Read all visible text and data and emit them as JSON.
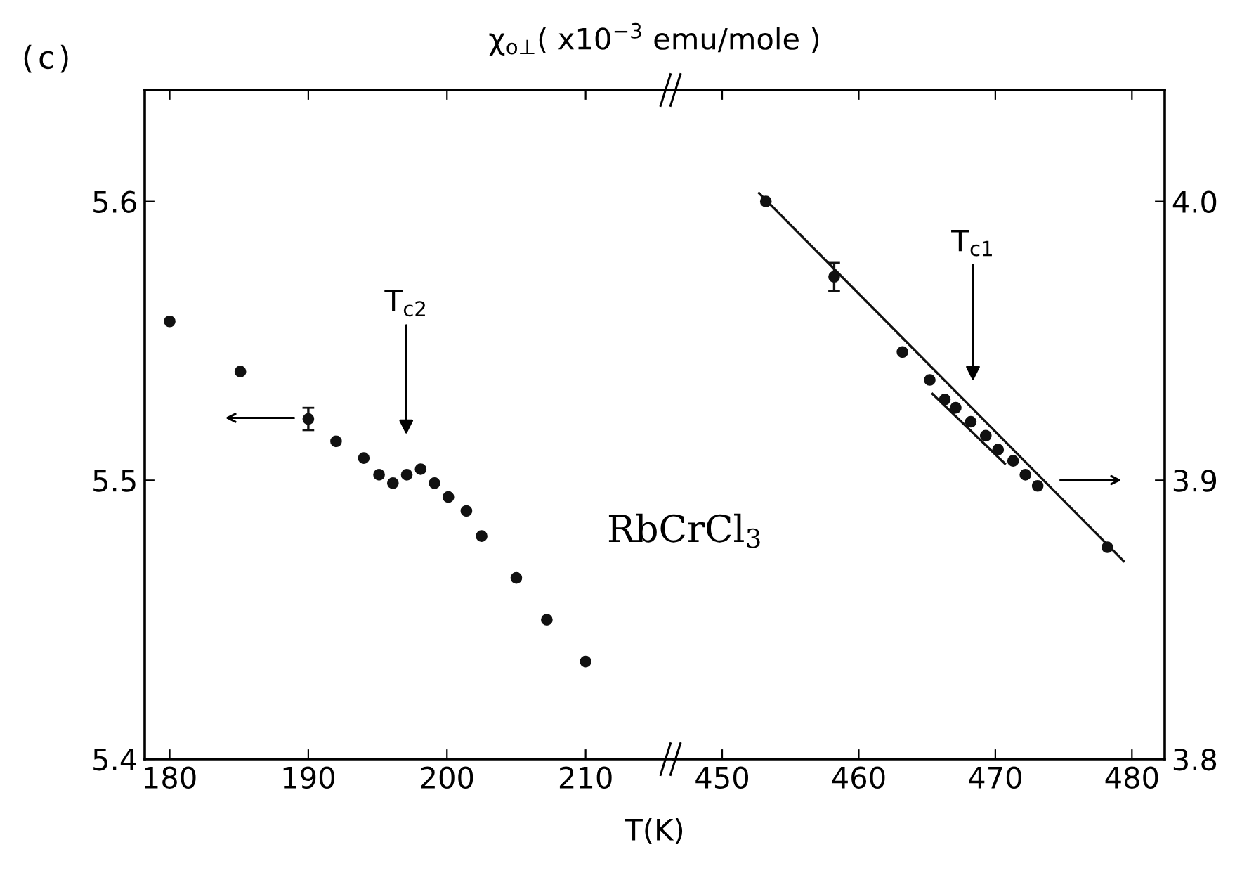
{
  "chart_data": [
    {
      "type": "scatter",
      "title": "χ$_{o⊥}$( x10$^{−3}$ emu/mole )",
      "xlabel": "T(K)",
      "xlim": [
        178.2,
        216.3
      ],
      "xticks": [
        180,
        190,
        200,
        210
      ],
      "ylim": [
        5.4,
        5.64
      ],
      "yticks": [
        5.4,
        5.5,
        5.6
      ],
      "marker": "circle",
      "grid": false,
      "series": [
        {
          "color": "#111111",
          "x": [
            180,
            185.1,
            190,
            192.0,
            194.0,
            195.1,
            196.1,
            197.1,
            198.1,
            199.1,
            200.1,
            201.4,
            202.5,
            205.0,
            207.2,
            210
          ],
          "values": [
            5.557,
            5.539,
            5.522,
            5.514,
            5.508,
            5.502,
            5.499,
            5.502,
            5.504,
            5.499,
            5.494,
            5.489,
            5.48,
            5.465,
            5.45,
            5.435
          ],
          "errors": [
            null,
            null,
            0.004,
            null,
            null,
            null,
            null,
            null,
            null,
            null,
            null,
            null,
            null,
            null,
            null,
            null
          ]
        }
      ],
      "annotations": [
        "(c)",
        "T$_{c2}$",
        "RbCrCl$_{3}$"
      ]
    },
    {
      "type": "scatter",
      "xlim": [
        446.4,
        482.4
      ],
      "xticks": [
        450,
        460,
        470,
        480
      ],
      "ylim": [
        3.8,
        4.04
      ],
      "yticks": [
        3.8,
        3.9,
        {
          "value": 4.0,
          "label": "4.0"
        }
      ],
      "marker": "circle",
      "grid": false,
      "series": [
        {
          "color": "#111111",
          "x": [
            453.2,
            458.2,
            463.2,
            465.2,
            466.3,
            467.1,
            468.2,
            469.3,
            470.2,
            471.3,
            472.2,
            473.1,
            478.2
          ],
          "values": [
            4.0,
            3.973,
            3.946,
            3.936,
            3.929,
            3.926,
            3.921,
            3.916,
            3.911,
            3.907,
            3.902,
            3.898,
            3.876
          ],
          "errors": [
            null,
            0.005,
            null,
            null,
            null,
            null,
            null,
            null,
            null,
            null,
            null,
            null,
            null
          ]
        },
        {
          "type": "line",
          "marker": "none",
          "color": "#111111",
          "x": [
            452.7,
            479.4
          ],
          "values": [
            4.003,
            3.871
          ]
        },
        {
          "type": "line",
          "marker": "none",
          "color": "#111111",
          "x": [
            465.4,
            470.7
          ],
          "values": [
            3.931,
            3.906
          ]
        }
      ],
      "annotations": [
        "T$_{c1}$"
      ]
    }
  ]
}
